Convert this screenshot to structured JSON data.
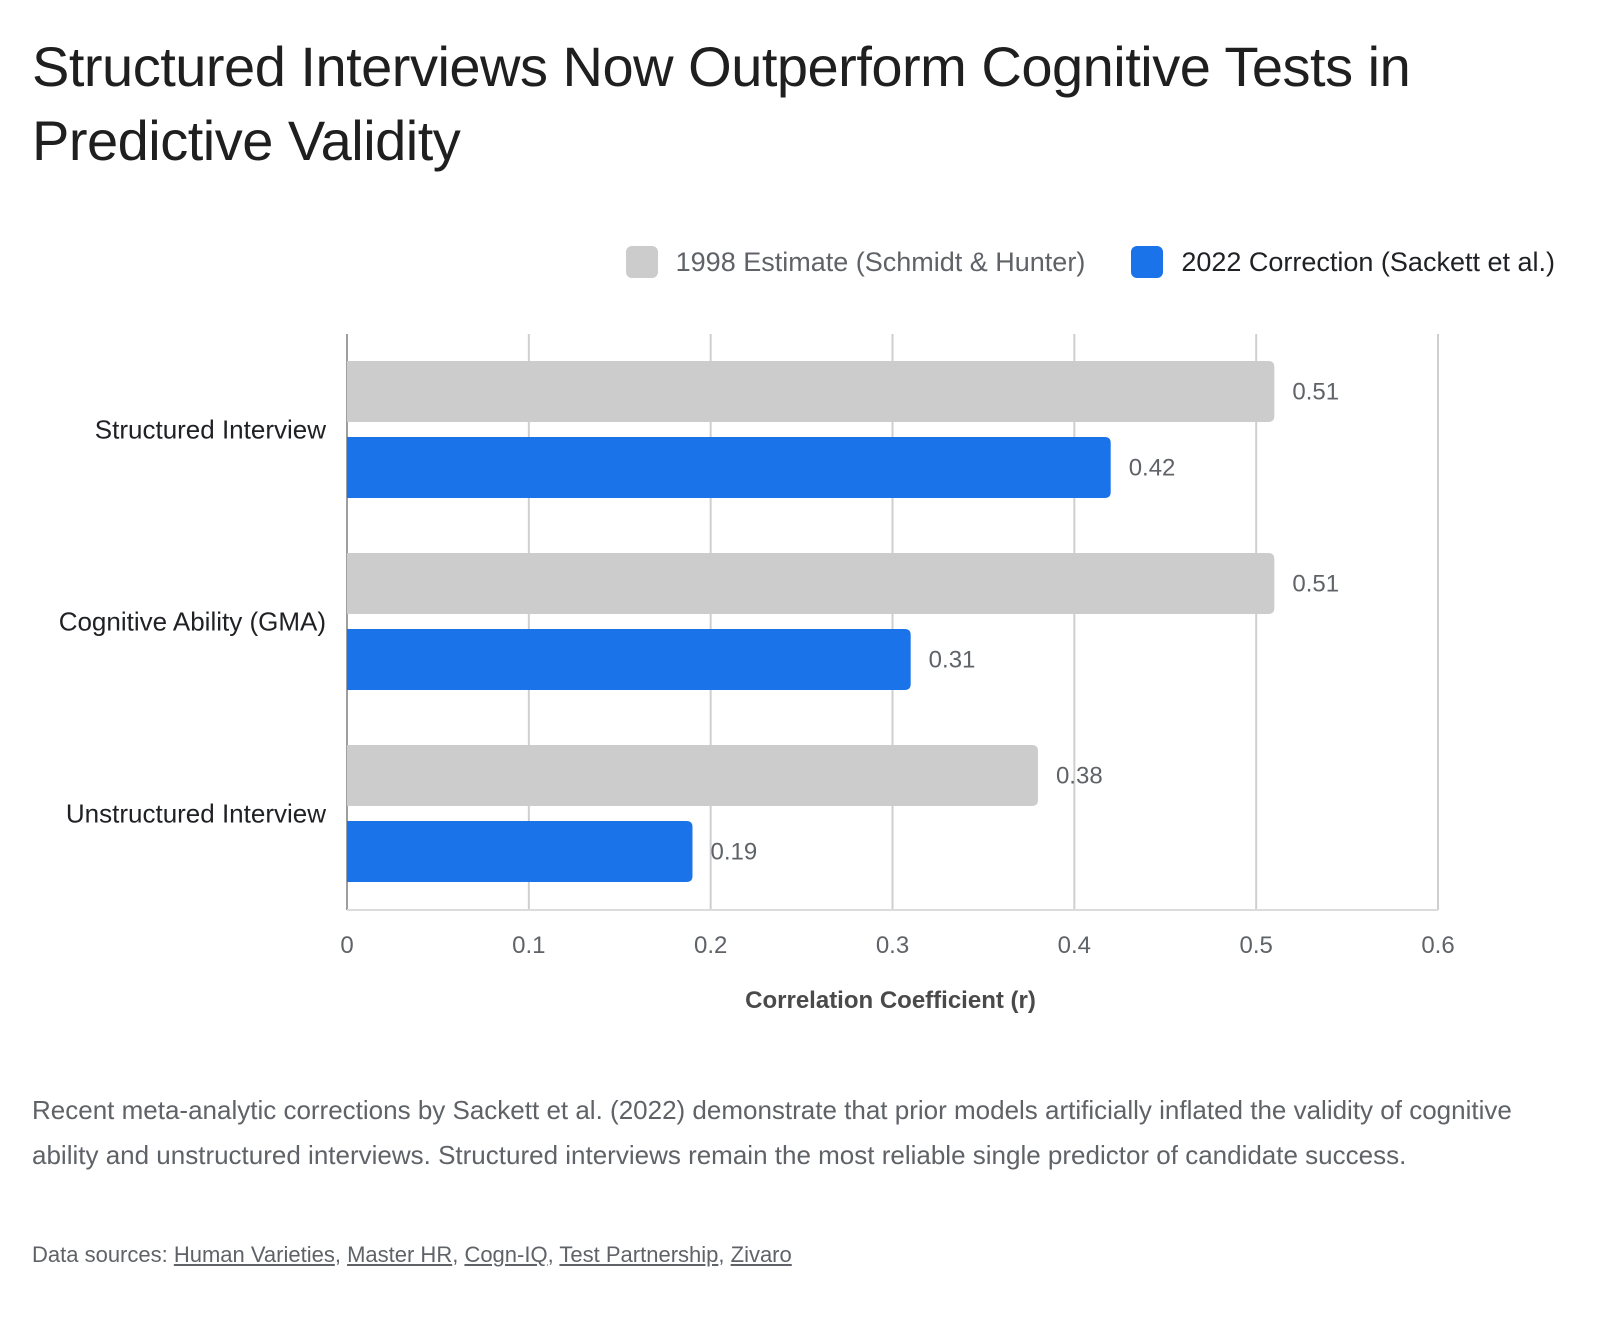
{
  "title": "Structured Interviews Now Outperform Cognitive Tests in Predictive Validity",
  "legend": [
    {
      "label": "1998 Estimate (Schmidt & Hunter)",
      "color": "#cccccc"
    },
    {
      "label": "2022 Correction (Sackett et al.)",
      "color": "#1a73e8"
    }
  ],
  "chart_data": {
    "type": "bar",
    "orientation": "horizontal",
    "categories": [
      "Structured Interview",
      "Cognitive Ability (GMA)",
      "Unstructured Interview"
    ],
    "series": [
      {
        "name": "1998 Estimate (Schmidt & Hunter)",
        "values": [
          0.51,
          0.51,
          0.38
        ],
        "labels": [
          "0.51",
          "0.51",
          "0.38"
        ],
        "color": "#cccccc"
      },
      {
        "name": "2022 Correction (Sackett et al.)",
        "values": [
          0.42,
          0.31,
          0.19
        ],
        "labels": [
          "0.42",
          "0.31",
          "0.19"
        ],
        "color": "#1a73e8"
      }
    ],
    "xlabel": "Correlation Coefficient (r)",
    "xlim": [
      0,
      0.6
    ],
    "xticks": [
      0,
      0.1,
      0.2,
      0.3,
      0.4,
      0.5,
      0.6
    ],
    "xtick_labels": [
      "0",
      "0.1",
      "0.2",
      "0.3",
      "0.4",
      "0.5",
      "0.6"
    ],
    "grid": true,
    "legend_position": "top-right"
  },
  "description": "Recent meta-analytic corrections by Sackett et al. (2022) demonstrate that prior models artificially inflated the validity of cognitive ability and unstructured interviews. Structured interviews remain the most reliable single predictor of candidate success.",
  "sources": {
    "prefix": "Data sources: ",
    "links": [
      "Human Varieties",
      "Master HR",
      "Cogn-IQ",
      "Test Partnership",
      "Zivaro"
    ],
    "separator": ", "
  }
}
